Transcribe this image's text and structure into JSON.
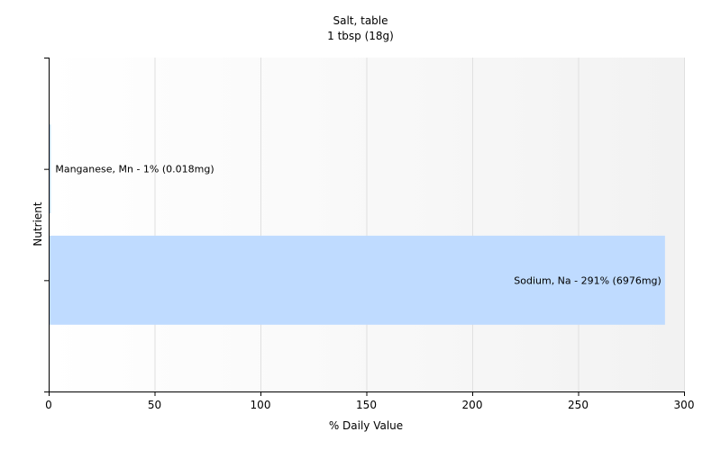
{
  "chart_data": {
    "type": "bar",
    "orientation": "horizontal",
    "title": "Salt, table",
    "subtitle": "1 tbsp (18g)",
    "xlabel": "% Daily Value",
    "ylabel": "Nutrient",
    "xlim": [
      0,
      300
    ],
    "xticks": [
      0,
      50,
      100,
      150,
      200,
      250,
      300
    ],
    "grid": true,
    "colors": {
      "bar": "#bfdbff",
      "plot_bg": "#f7f7f7",
      "grid": "#e0e0e0",
      "axis": "#000000"
    },
    "categories": [
      "Manganese, Mn",
      "Sodium, Na"
    ],
    "values": [
      1,
      291
    ],
    "labels": [
      "Manganese, Mn - 1% (0.018mg)",
      "Sodium, Na - 291% (6976mg)"
    ]
  }
}
